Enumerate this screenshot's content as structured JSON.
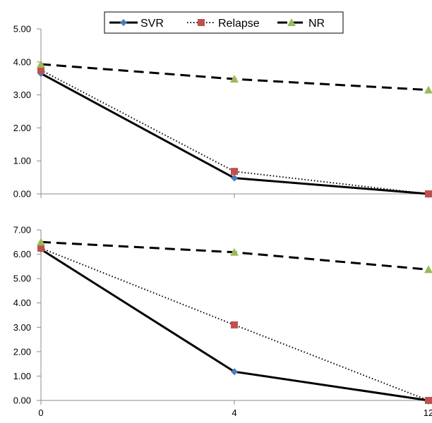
{
  "legend": {
    "items": [
      {
        "label": "SVR",
        "color": "#000000",
        "dash": "solid",
        "marker": "diamond",
        "marker_color": "#4a7ebb"
      },
      {
        "label": "Relapse",
        "color": "#000000",
        "dash": "dotted",
        "marker": "square",
        "marker_color": "#c0504d"
      },
      {
        "label": "NR",
        "color": "#000000",
        "dash": "dashed",
        "marker": "triangle",
        "marker_color": "#9bbb59"
      }
    ]
  },
  "chart_data": [
    {
      "type": "line",
      "x": [
        0,
        4,
        12
      ],
      "x_tick_labels": [],
      "ylim": [
        0,
        5
      ],
      "y_tick_labels": [
        "0.00",
        "1.00",
        "2.00",
        "3.00",
        "4.00",
        "5.00"
      ],
      "grid": false,
      "legend_position": "top",
      "series": [
        {
          "name": "SVR",
          "values": [
            3.65,
            0.48,
            0.0
          ]
        },
        {
          "name": "Relapse",
          "values": [
            3.75,
            0.68,
            0.0
          ]
        },
        {
          "name": "NR",
          "values": [
            3.93,
            3.48,
            3.15
          ]
        }
      ]
    },
    {
      "type": "line",
      "x": [
        0,
        4,
        12
      ],
      "x_tick_labels": [
        "0",
        "4",
        "12"
      ],
      "ylim": [
        0,
        7
      ],
      "y_tick_labels": [
        "0.00",
        "1.00",
        "2.00",
        "3.00",
        "4.00",
        "5.00",
        "6.00",
        "7.00"
      ],
      "grid": false,
      "series": [
        {
          "name": "SVR",
          "values": [
            6.2,
            1.18,
            0.0
          ]
        },
        {
          "name": "Relapse",
          "values": [
            6.25,
            3.1,
            0.0
          ]
        },
        {
          "name": "NR",
          "values": [
            6.5,
            6.08,
            5.37
          ]
        }
      ]
    }
  ]
}
